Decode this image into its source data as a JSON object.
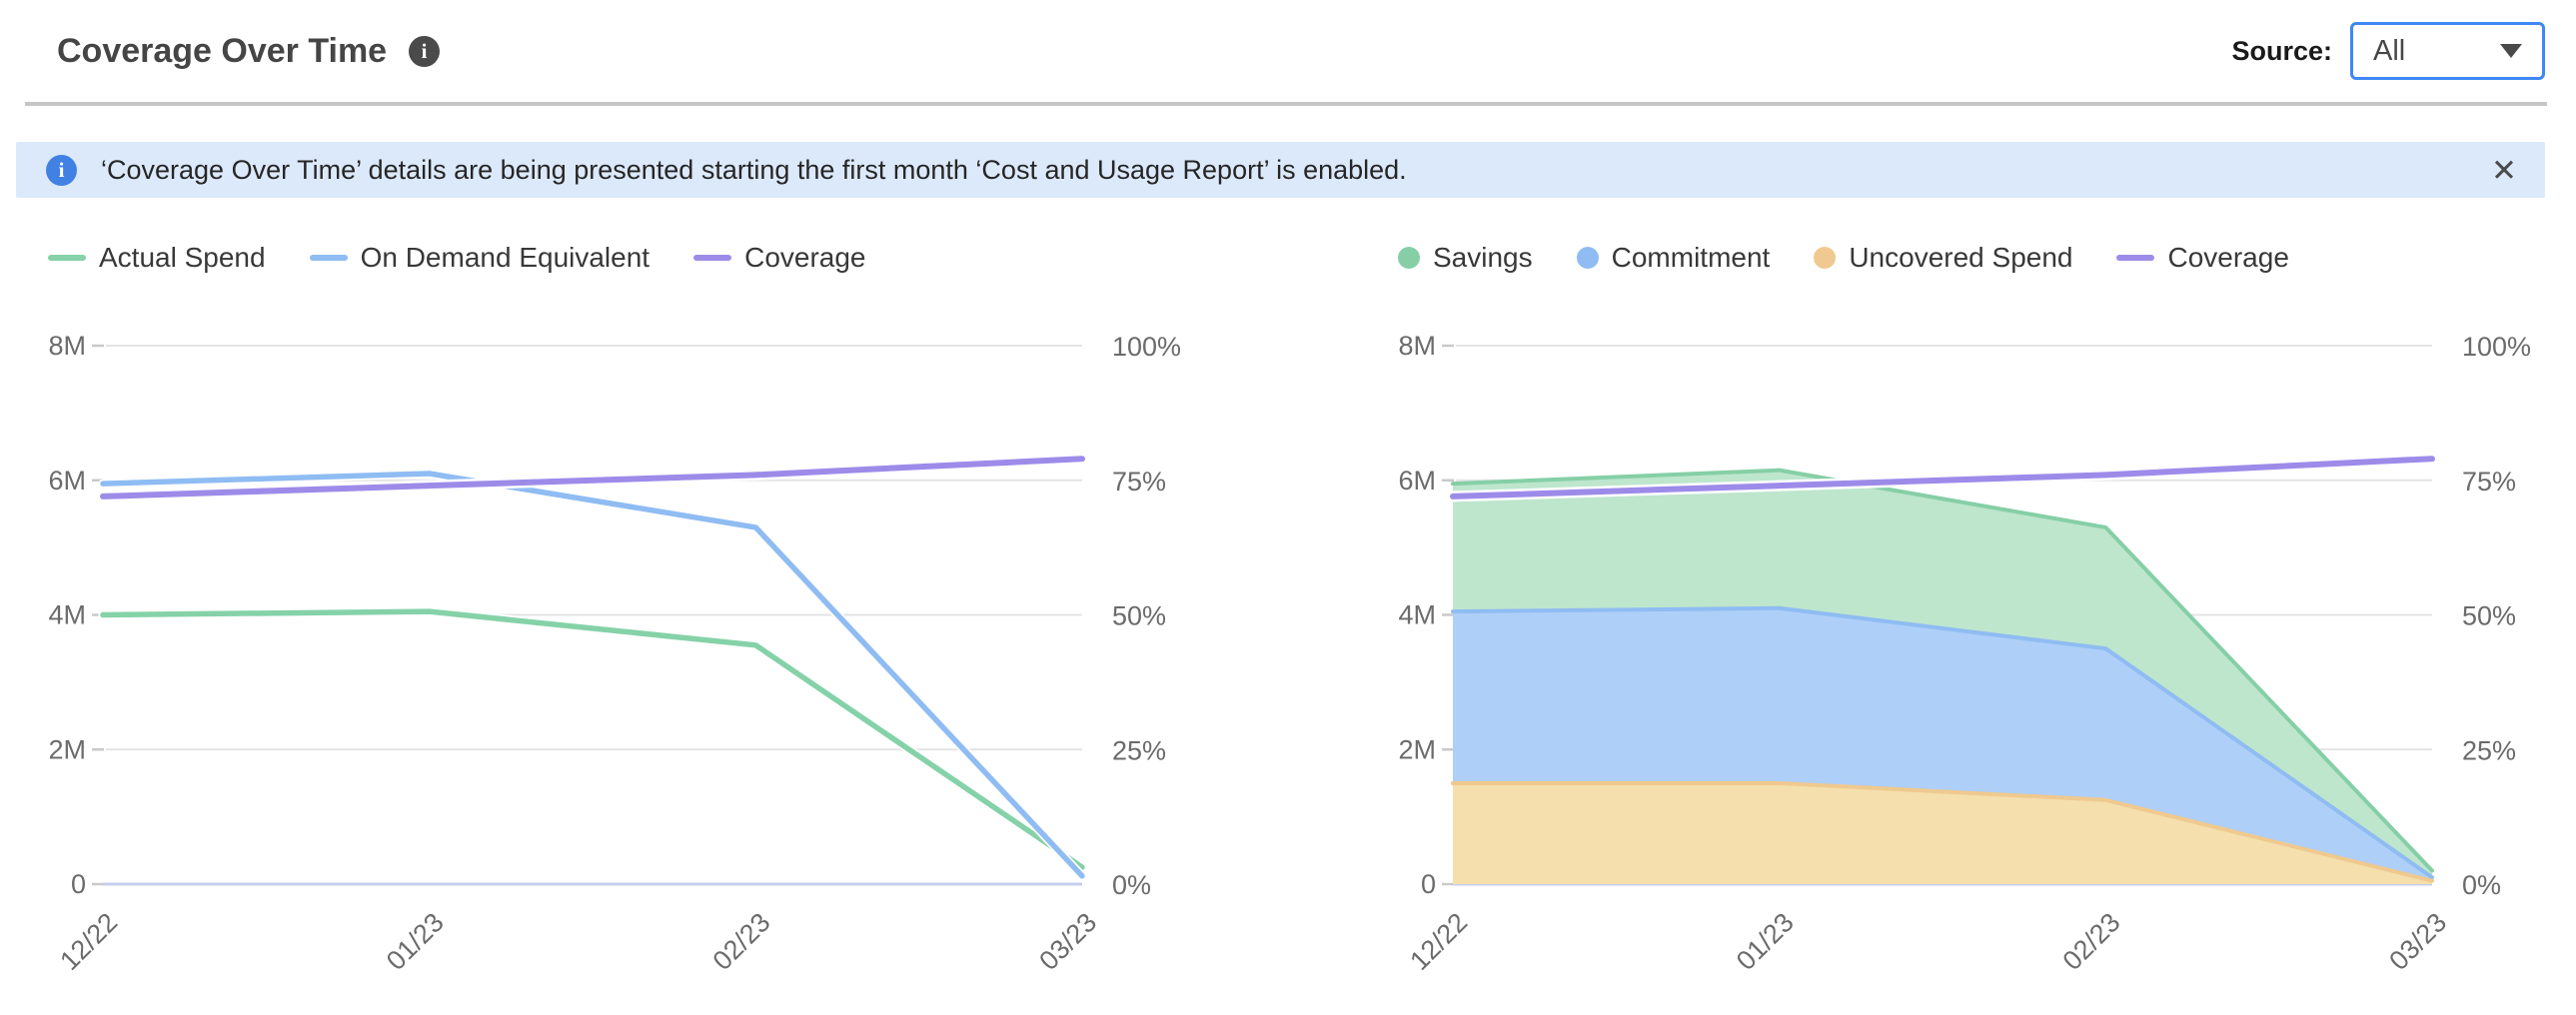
{
  "header": {
    "title": "Coverage Over Time",
    "info_icon": "i",
    "source_label": "Source:",
    "source_value": "All"
  },
  "banner": {
    "info_icon": "i",
    "text": "‘Coverage Over Time’ details are being presented starting the first month ‘Cost and Usage Report’ is enabled.",
    "close_glyph": "✕"
  },
  "colors": {
    "accent_blue": "#3f87f5",
    "banner_bg": "#dce9fa",
    "banner_icon_bg": "#4181e4",
    "title_icon_bg": "#4a4a4a",
    "gridline": "#e4e4e4",
    "zero_line": "#c4cdee",
    "axis_text": "#6b6b6b",
    "series_green": "#85d2a8",
    "series_blue": "#8fbcf2",
    "series_purple": "#9d8be9",
    "series_orange": "#efc98f"
  },
  "chart_data": [
    {
      "name": "spend-lines",
      "type": "line",
      "categories": [
        "12/22",
        "01/23",
        "02/23",
        "03/23"
      ],
      "series": [
        {
          "name": "Actual Spend",
          "marker": "line",
          "color": "#85d2a8",
          "axis": "left",
          "values_millions": [
            4.0,
            4.05,
            3.55,
            0.25
          ]
        },
        {
          "name": "On Demand Equivalent",
          "marker": "line",
          "color": "#8fbcf2",
          "axis": "left",
          "values_millions": [
            5.95,
            6.1,
            5.3,
            0.12
          ]
        },
        {
          "name": "Coverage",
          "marker": "line",
          "color": "#9d8be9",
          "axis": "right",
          "values_percent": [
            72,
            74,
            76,
            79
          ]
        }
      ],
      "left_axis": {
        "ticks": [
          "0",
          "2M",
          "4M",
          "6M",
          "8M"
        ],
        "max_millions": 8
      },
      "right_axis": {
        "ticks": [
          "0%",
          "25%",
          "50%",
          "75%",
          "100%"
        ],
        "max_percent": 100
      },
      "grid": true,
      "legend_position": "top-left"
    },
    {
      "name": "coverage-stack",
      "type": "area",
      "categories": [
        "12/22",
        "01/23",
        "02/23",
        "03/23"
      ],
      "series": [
        {
          "name": "Savings",
          "marker": "dot",
          "color": "#86cfa6",
          "fill": "#bde6cd",
          "stack_level": 3,
          "axis": "left",
          "values_millions": [
            1.9,
            2.05,
            1.8,
            0.1
          ]
        },
        {
          "name": "Commitment",
          "marker": "dot",
          "color": "#8fbcf2",
          "fill": "#aecff8",
          "stack_level": 2,
          "axis": "left",
          "values_millions": [
            2.55,
            2.6,
            2.25,
            0.05
          ]
        },
        {
          "name": "Uncovered Spend",
          "marker": "dot",
          "color": "#efc98f",
          "fill": "#f5dfad",
          "stack_level": 1,
          "axis": "left",
          "values_millions": [
            1.5,
            1.5,
            1.25,
            0.05
          ]
        },
        {
          "name": "Coverage",
          "marker": "line",
          "color": "#9d8be9",
          "axis": "right",
          "values_percent": [
            72,
            74,
            76,
            79
          ]
        }
      ],
      "left_axis": {
        "ticks": [
          "0",
          "2M",
          "4M",
          "6M",
          "8M"
        ],
        "max_millions": 8
      },
      "right_axis": {
        "ticks": [
          "0%",
          "25%",
          "50%",
          "75%",
          "100%"
        ],
        "max_percent": 100
      },
      "grid": true,
      "legend_position": "top-left"
    }
  ]
}
